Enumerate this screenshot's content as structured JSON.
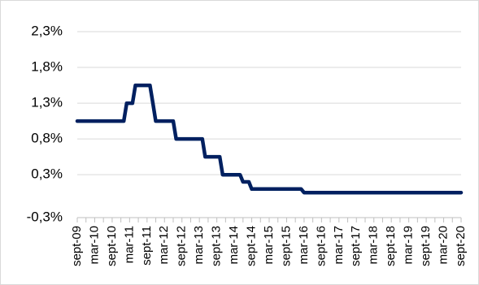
{
  "chart_data": {
    "type": "line",
    "title": "",
    "xlabel": "",
    "ylabel": "",
    "ylim": [
      -0.3,
      2.3
    ],
    "y_ticks": [
      "2,3%",
      "1,8%",
      "1,3%",
      "0,8%",
      "0,3%",
      "-0,3%"
    ],
    "y_tick_values": [
      2.3,
      1.8,
      1.3,
      0.8,
      0.3,
      -0.3
    ],
    "x_tick_labels": [
      "sept-09",
      "mar-10",
      "sept-10",
      "mar-11",
      "sept-11",
      "mar-12",
      "sept-12",
      "mar-13",
      "sept-13",
      "mar-14",
      "sept-14",
      "mar-15",
      "sept-15",
      "mar-16",
      "sept-16",
      "mar-17",
      "sept-17",
      "mar-18",
      "sept-18",
      "mar-19",
      "sept-19",
      "mar-20",
      "sept-20"
    ],
    "grid": true,
    "legend": "none",
    "line_color": "#002060",
    "series": [
      {
        "points": [
          [
            "2009-09",
            1.05
          ],
          [
            "2010-03",
            1.05
          ],
          [
            "2010-09",
            1.05
          ],
          [
            "2011-01",
            1.05
          ],
          [
            "2011-02",
            1.3
          ],
          [
            "2011-04",
            1.3
          ],
          [
            "2011-05",
            1.55
          ],
          [
            "2011-10",
            1.55
          ],
          [
            "2011-11",
            1.3
          ],
          [
            "2011-12",
            1.05
          ],
          [
            "2012-06",
            1.05
          ],
          [
            "2012-07",
            0.8
          ],
          [
            "2013-04",
            0.8
          ],
          [
            "2013-05",
            0.55
          ],
          [
            "2013-10",
            0.55
          ],
          [
            "2013-11",
            0.3
          ],
          [
            "2014-05",
            0.3
          ],
          [
            "2014-06",
            0.2
          ],
          [
            "2014-08",
            0.2
          ],
          [
            "2014-09",
            0.1
          ],
          [
            "2016-02",
            0.1
          ],
          [
            "2016-03",
            0.05
          ],
          [
            "2020-09",
            0.05
          ]
        ]
      }
    ]
  }
}
